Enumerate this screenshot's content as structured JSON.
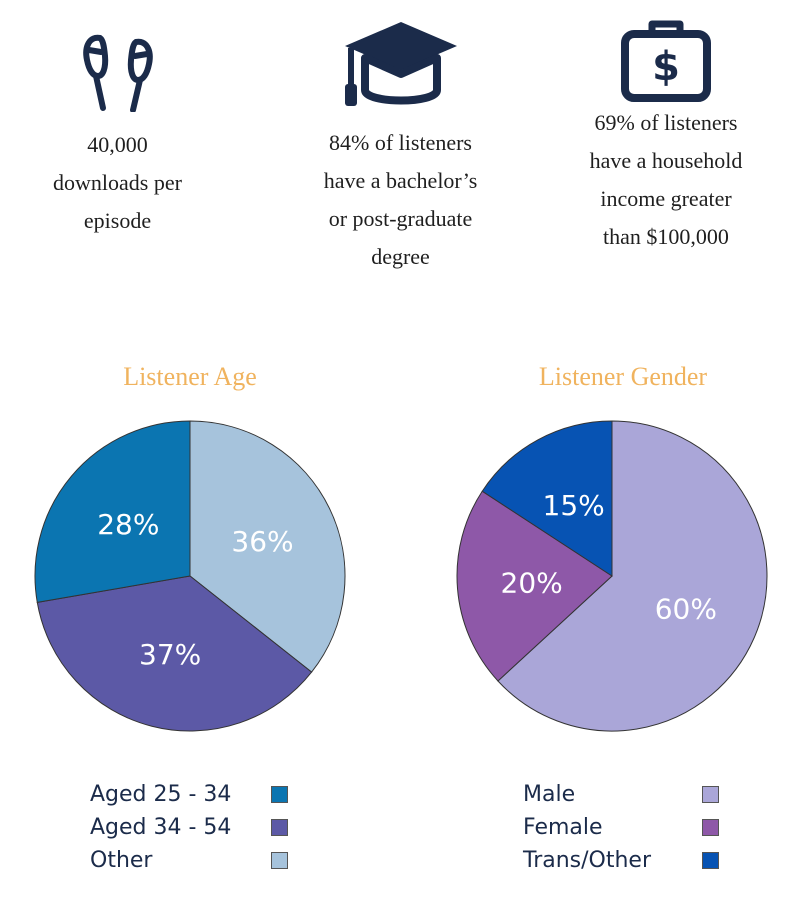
{
  "stats": [
    {
      "icon": "earbuds-icon",
      "text": "40,000\ndownloads per\nepisode"
    },
    {
      "icon": "graduation-cap-icon",
      "text": "84% of listeners\nhave a bachelor’s\nor post-graduate\ndegree"
    },
    {
      "icon": "money-case-icon",
      "text": "69% of listeners\nhave a household\nincome greater\nthan $100,000"
    }
  ],
  "colors": {
    "icon": "#1b2b4a",
    "title": "#f0b35e",
    "legend_text": "#1b2b4a",
    "slice_label": "#ffffff"
  },
  "chart_data": [
    {
      "type": "pie",
      "title": "Listener Age",
      "slices": [
        {
          "label": "Other",
          "value": 36,
          "display": "36%",
          "color": "#a6c3dc"
        },
        {
          "label": "Aged 34 - 54",
          "value": 37,
          "display": "37%",
          "color": "#5c59a6"
        },
        {
          "label": "Aged 25 - 34",
          "value": 28,
          "display": "28%",
          "color": "#0b75b1"
        }
      ],
      "legend": [
        {
          "label": "Aged 25 - 34",
          "color": "#0b75b1"
        },
        {
          "label": "Aged 34 - 54",
          "color": "#5c59a6"
        },
        {
          "label": "Other",
          "color": "#a6c3dc"
        }
      ],
      "legend_placement": "bottom"
    },
    {
      "type": "pie",
      "title": "Listener Gender",
      "slices": [
        {
          "label": "Male",
          "value": 60,
          "display": "60%",
          "color": "#aaa6d8"
        },
        {
          "label": "Female",
          "value": 20,
          "display": "20%",
          "color": "#8e58a8"
        },
        {
          "label": "Trans/Other",
          "value": 15,
          "display": "15%",
          "color": "#0753b3"
        }
      ],
      "legend": [
        {
          "label": "Male",
          "color": "#aaa6d8"
        },
        {
          "label": "Female",
          "color": "#8e58a8"
        },
        {
          "label": "Trans/Other",
          "color": "#0753b3"
        }
      ],
      "legend_placement": "bottom"
    }
  ]
}
